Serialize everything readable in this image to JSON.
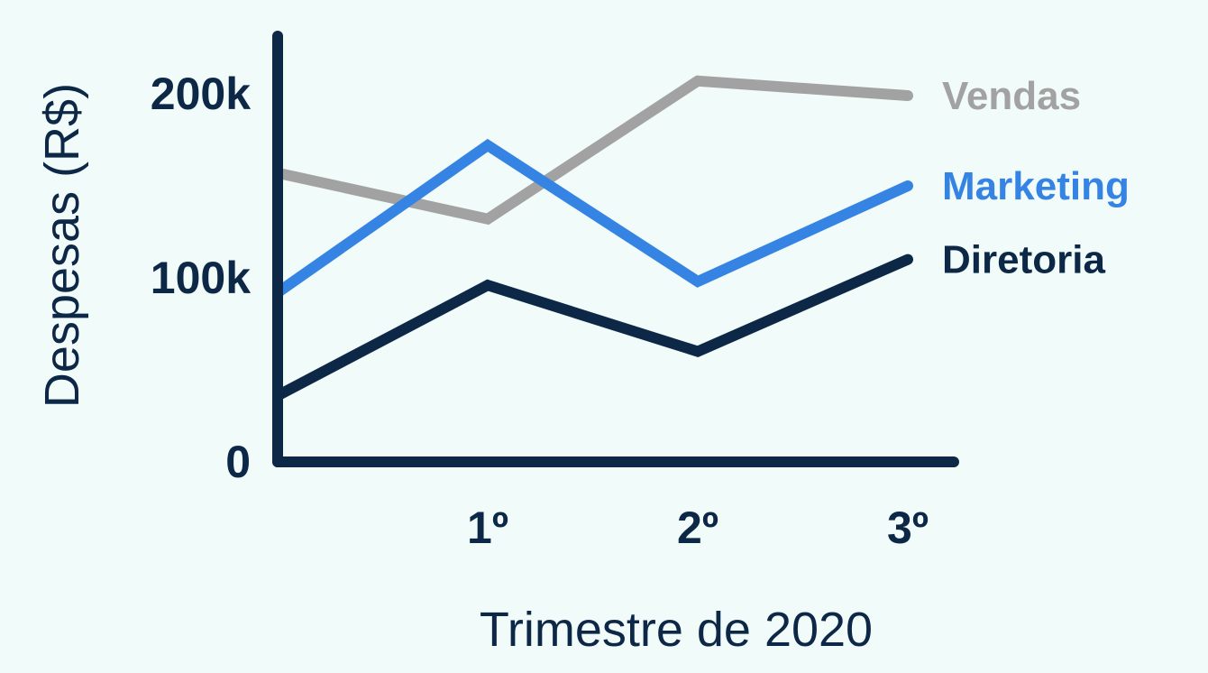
{
  "chart_data": {
    "type": "line",
    "title": "",
    "xlabel": "Trimestre de 2020",
    "ylabel": "Despesas (R$)",
    "x": [
      0,
      1,
      2,
      3
    ],
    "x_tick_labels": [
      "1º",
      "2º",
      "3º"
    ],
    "x_tick_positions": [
      1,
      2,
      3
    ],
    "y_tick_labels": [
      "0",
      "100k",
      "200k"
    ],
    "y_tick_values": [
      0,
      100000,
      200000
    ],
    "ylim": [
      0,
      240000
    ],
    "xlim": [
      0,
      3
    ],
    "grid": false,
    "legend": "right, at line ends",
    "series": [
      {
        "name": "Vendas",
        "color": "#a2a2a2",
        "values": [
          157000,
          132000,
          207000,
          199000
        ]
      },
      {
        "name": "Marketing",
        "color": "#3584e4",
        "values": [
          92000,
          172000,
          98000,
          150000
        ]
      },
      {
        "name": "Diretoria",
        "color": "#0d2847",
        "values": [
          36000,
          96000,
          60000,
          110000
        ]
      }
    ]
  }
}
